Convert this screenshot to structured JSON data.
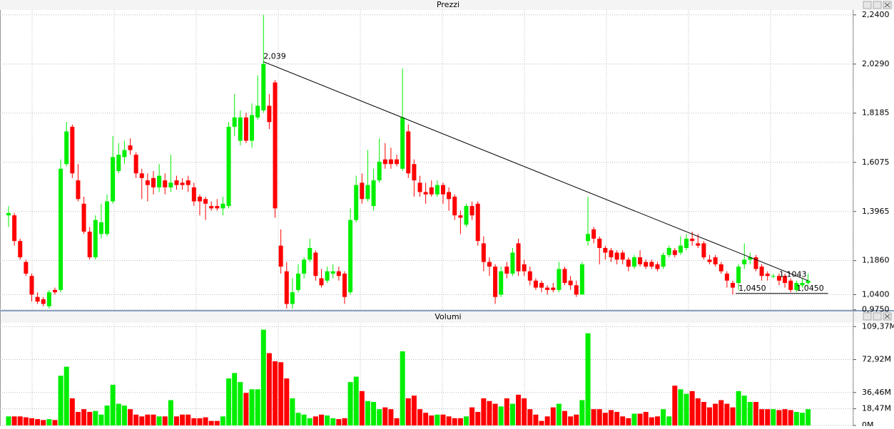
{
  "chart_data": [
    {
      "type": "candlestick",
      "title": "Prezzi",
      "open": [
        1.38,
        1.38,
        1.27,
        1.18,
        1.12,
        1.03,
        1.02,
        0.99,
        1.06,
        1.06,
        1.6,
        1.76,
        1.53,
        1.43,
        1.31,
        1.2,
        1.3,
        1.3,
        1.44,
        1.57,
        1.63,
        1.68,
        1.64,
        1.56,
        1.53,
        1.54,
        1.5,
        1.53,
        1.5,
        1.53,
        1.52,
        1.53,
        1.5,
        1.46,
        1.45,
        1.42,
        1.42,
        1.41,
        1.42,
        1.76,
        1.7,
        1.8,
        1.7,
        1.8,
        1.83,
        1.85,
        1.95,
        1.25,
        1.14,
        1.0,
        1.06,
        1.13,
        1.19,
        1.22,
        1.11,
        1.1,
        1.13,
        1.14,
        1.13,
        1.05,
        1.36,
        1.52,
        1.45,
        1.42,
        1.53,
        1.62,
        1.62,
        1.62,
        1.58,
        1.74,
        1.6,
        1.52,
        1.48,
        1.5,
        1.47,
        1.51,
        1.48,
        1.46,
        1.38,
        1.34,
        1.42,
        1.43,
        1.26,
        1.18,
        1.16,
        1.04,
        1.16,
        1.13,
        1.26,
        1.17,
        1.14,
        1.1,
        1.09,
        1.07,
        1.07,
        1.06,
        1.15,
        1.1,
        1.08,
        1.04,
        1.27,
        1.32,
        1.28,
        1.24,
        1.23,
        1.22,
        1.22,
        1.19,
        1.16,
        1.2,
        1.18,
        1.18,
        1.17,
        1.16,
        1.21,
        1.23,
        1.22,
        1.24,
        1.28,
        1.26,
        1.26,
        1.19,
        1.2,
        1.17,
        1.13,
        1.09,
        1.09,
        1.17,
        1.19,
        1.2,
        1.16,
        1.13,
        1.12,
        1.12,
        1.12,
        1.1,
        1.06,
        1.08,
        1.09
      ],
      "high": [
        1.42,
        1.39,
        1.28,
        1.19,
        1.13,
        1.05,
        1.03,
        1.06,
        1.07,
        1.62,
        1.78,
        1.77,
        1.6,
        1.46,
        1.33,
        1.38,
        1.43,
        1.47,
        1.72,
        1.69,
        1.7,
        1.71,
        1.65,
        1.58,
        1.56,
        1.57,
        1.6,
        1.56,
        1.64,
        1.55,
        1.54,
        1.55,
        1.52,
        1.47,
        1.46,
        1.44,
        1.45,
        1.46,
        1.78,
        1.9,
        1.83,
        1.82,
        1.86,
        1.98,
        2.24,
        1.9,
        1.96,
        1.32,
        1.18,
        1.11,
        1.17,
        1.2,
        1.28,
        1.23,
        1.15,
        1.16,
        1.17,
        1.16,
        1.14,
        1.41,
        1.55,
        1.56,
        1.66,
        1.58,
        1.71,
        1.69,
        1.67,
        1.64,
        2.01,
        1.77,
        1.62,
        1.55,
        1.52,
        1.53,
        1.53,
        1.52,
        1.5,
        1.47,
        1.4,
        1.43,
        1.44,
        1.44,
        1.29,
        1.2,
        1.17,
        1.16,
        1.18,
        1.24,
        1.28,
        1.19,
        1.16,
        1.11,
        1.1,
        1.08,
        1.09,
        1.18,
        1.16,
        1.12,
        1.1,
        1.18,
        1.46,
        1.33,
        1.29,
        1.25,
        1.24,
        1.23,
        1.23,
        1.2,
        1.21,
        1.23,
        1.19,
        1.19,
        1.18,
        1.22,
        1.25,
        1.24,
        1.29,
        1.3,
        1.31,
        1.3,
        1.27,
        1.21,
        1.21,
        1.18,
        1.14,
        1.1,
        1.17,
        1.26,
        1.22,
        1.21,
        1.17,
        1.14,
        1.13,
        1.13,
        1.13,
        1.11,
        1.1,
        1.11,
        1.13
      ],
      "low": [
        1.33,
        1.25,
        1.19,
        1.12,
        1.01,
        1.0,
        0.99,
        0.98,
        1.04,
        1.05,
        1.59,
        1.54,
        1.44,
        1.3,
        1.19,
        1.19,
        1.28,
        1.29,
        1.43,
        1.56,
        1.6,
        1.64,
        1.54,
        1.45,
        1.44,
        1.47,
        1.48,
        1.47,
        1.48,
        1.49,
        1.49,
        1.48,
        1.42,
        1.38,
        1.36,
        1.4,
        1.4,
        1.38,
        1.41,
        1.72,
        1.68,
        1.69,
        1.67,
        1.79,
        1.82,
        1.75,
        1.37,
        1.13,
        0.98,
        0.98,
        1.05,
        1.11,
        1.18,
        1.1,
        1.07,
        1.09,
        1.11,
        1.1,
        1.0,
        1.04,
        1.35,
        1.43,
        1.44,
        1.4,
        1.52,
        1.58,
        1.58,
        1.59,
        1.57,
        1.54,
        1.46,
        1.46,
        1.43,
        1.46,
        1.46,
        1.43,
        1.4,
        1.36,
        1.3,
        1.33,
        1.36,
        1.25,
        1.14,
        1.12,
        1.0,
        1.03,
        1.11,
        1.12,
        1.12,
        1.12,
        1.08,
        1.06,
        1.05,
        1.04,
        1.05,
        1.05,
        1.08,
        1.06,
        1.03,
        1.04,
        1.25,
        1.26,
        1.17,
        1.19,
        1.18,
        1.17,
        1.17,
        1.14,
        1.15,
        1.16,
        1.15,
        1.15,
        1.14,
        1.15,
        1.2,
        1.2,
        1.21,
        1.23,
        1.25,
        1.24,
        1.19,
        1.17,
        1.16,
        1.13,
        1.07,
        1.04,
        1.06,
        1.15,
        1.17,
        1.14,
        1.1,
        1.1,
        1.11,
        1.08,
        1.07,
        1.05,
        1.05,
        1.07,
        1.08
      ],
      "close": [
        1.39,
        1.27,
        1.2,
        1.13,
        1.04,
        1.01,
        1.0,
        1.05,
        1.05,
        1.58,
        1.74,
        1.56,
        1.45,
        1.31,
        1.2,
        1.36,
        1.35,
        1.44,
        1.63,
        1.64,
        1.66,
        1.66,
        1.56,
        1.54,
        1.51,
        1.5,
        1.55,
        1.5,
        1.52,
        1.51,
        1.51,
        1.51,
        1.44,
        1.44,
        1.43,
        1.41,
        1.41,
        1.43,
        1.76,
        1.8,
        1.8,
        1.7,
        1.81,
        1.85,
        2.03,
        1.78,
        1.41,
        1.16,
        1.0,
        1.05,
        1.13,
        1.19,
        1.24,
        1.12,
        1.08,
        1.14,
        1.14,
        1.12,
        1.03,
        1.36,
        1.51,
        1.45,
        1.51,
        1.53,
        1.61,
        1.6,
        1.6,
        1.6,
        1.8,
        1.56,
        1.53,
        1.48,
        1.47,
        1.47,
        1.51,
        1.47,
        1.45,
        1.38,
        1.37,
        1.42,
        1.38,
        1.27,
        1.18,
        1.16,
        1.03,
        1.14,
        1.13,
        1.22,
        1.14,
        1.14,
        1.1,
        1.07,
        1.07,
        1.06,
        1.06,
        1.15,
        1.09,
        1.08,
        1.04,
        1.17,
        1.3,
        1.28,
        1.24,
        1.22,
        1.2,
        1.19,
        1.19,
        1.16,
        1.2,
        1.17,
        1.16,
        1.16,
        1.15,
        1.21,
        1.24,
        1.21,
        1.25,
        1.28,
        1.27,
        1.25,
        1.2,
        1.18,
        1.17,
        1.14,
        1.1,
        1.07,
        1.16,
        1.19,
        1.2,
        1.15,
        1.12,
        1.12,
        1.12,
        1.1,
        1.09,
        1.06,
        1.09,
        1.09,
        1.1
      ],
      "up_color": "#00ee00",
      "down_color": "#ff0000",
      "grid": true,
      "ylim": [
        0.974,
        2.261
      ],
      "yticks": [
        {
          "value": 0.975,
          "label": "0,9750"
        },
        {
          "value": 1.04,
          "label": "1,0400"
        },
        {
          "value": 1.186,
          "label": "1,1860"
        },
        {
          "value": 1.3965,
          "label": "1,3965"
        },
        {
          "value": 1.6075,
          "label": "1,6075"
        },
        {
          "value": 1.8185,
          "label": "1,8185"
        },
        {
          "value": 2.029,
          "label": "2,0290"
        },
        {
          "value": 2.24,
          "label": "2,2400"
        }
      ],
      "trendline": {
        "start_index": 44,
        "start_value": 2.039,
        "end_index": 138,
        "end_value": 1.1
      },
      "support": {
        "start_index": 126,
        "end_index": 139,
        "value": 1.045
      },
      "annotations": [
        {
          "label": "2,039",
          "value": 2.039,
          "index": 44
        },
        {
          "label": "1,0450",
          "value": 1.045,
          "index": 126
        },
        {
          "label": "1,1043",
          "value": 1.1043,
          "index": 133
        },
        {
          "label": "1,0450",
          "value": 1.045,
          "index": 136
        }
      ]
    },
    {
      "type": "bar",
      "title": "Volumi",
      "values": [
        10,
        10,
        10,
        9,
        8,
        7,
        6,
        7,
        6,
        55,
        65,
        30,
        15,
        18,
        15,
        16,
        12,
        22,
        45,
        24,
        22,
        18,
        12,
        10,
        12,
        12,
        10,
        10,
        28,
        10,
        12,
        12,
        8,
        8,
        9,
        5,
        5,
        10,
        52,
        58,
        48,
        36,
        40,
        40,
        106,
        80,
        71,
        70,
        52,
        30,
        14,
        12,
        8,
        10,
        12,
        11,
        8,
        7,
        8,
        48,
        54,
        38,
        27,
        26,
        18,
        20,
        18,
        8,
        82,
        30,
        33,
        18,
        14,
        11,
        12,
        12,
        10,
        8,
        8,
        10,
        20,
        15,
        30,
        27,
        24,
        21,
        30,
        24,
        34,
        30,
        18,
        12,
        5,
        10,
        20,
        24,
        16,
        10,
        12,
        28,
        102,
        18,
        18,
        14,
        17,
        15,
        10,
        8,
        13,
        13,
        15,
        9,
        10,
        18,
        10,
        44,
        40,
        35,
        38,
        30,
        26,
        20,
        24,
        28,
        24,
        20,
        38,
        33,
        26,
        26,
        18,
        18,
        18,
        17,
        18,
        17,
        15,
        14,
        18
      ],
      "ylim": [
        0,
        112
      ],
      "yticks": [
        {
          "value": 0,
          "label": "0M"
        },
        {
          "value": 18.47,
          "label": "18,47M"
        },
        {
          "value": 36.46,
          "label": "36,46M"
        },
        {
          "value": 72.92,
          "label": "72,92M"
        },
        {
          "value": 109.37,
          "label": "109,37M"
        }
      ]
    }
  ]
}
